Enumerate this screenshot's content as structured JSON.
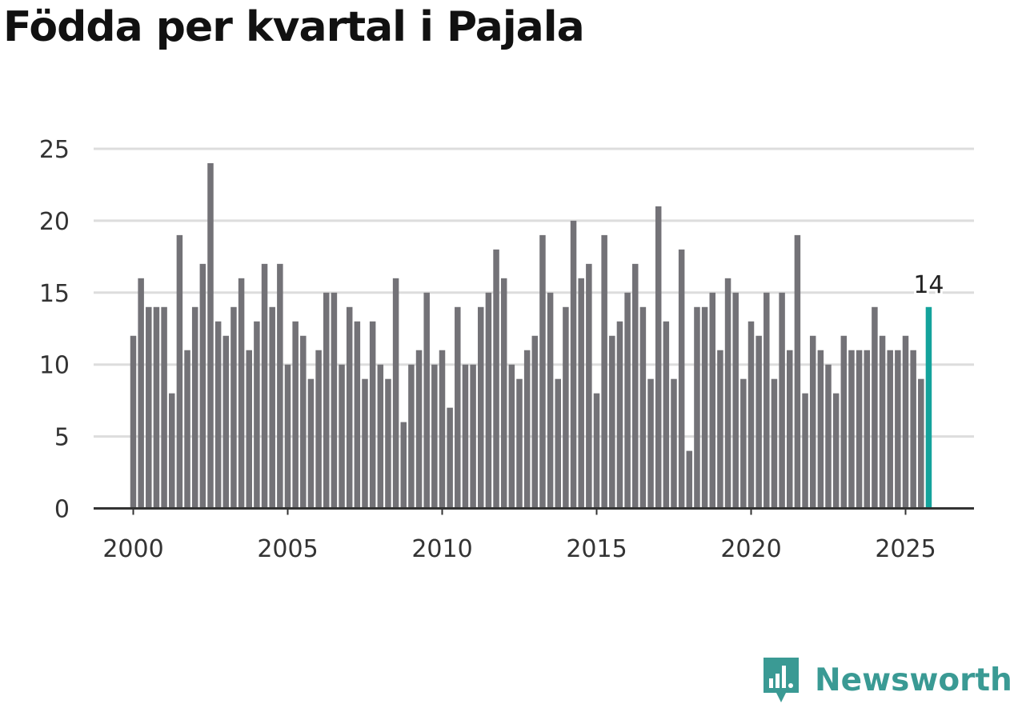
{
  "title": "Födda per kvartal i Pajala",
  "brand": {
    "name": "Newsworthy",
    "icon": "newsworthy-logo-icon",
    "color": "#3a9a94"
  },
  "colors": {
    "bar": "#737277",
    "highlight": "#14a39c",
    "grid": "#dddddd",
    "axis": "#333333"
  },
  "chart_data": {
    "type": "bar",
    "title": "Födda per kvartal i Pajala",
    "xlabel": "",
    "ylabel": "",
    "x_start": "2000 Q1",
    "x_ticks": [
      "2000",
      "2005",
      "2010",
      "2015",
      "2020",
      "2025"
    ],
    "y_ticks": [
      0,
      5,
      10,
      15,
      20,
      25
    ],
    "ylim": [
      0,
      25
    ],
    "grid": true,
    "values": [
      12,
      16,
      14,
      14,
      14,
      8,
      19,
      11,
      14,
      17,
      24,
      13,
      12,
      14,
      16,
      11,
      13,
      17,
      14,
      17,
      10,
      13,
      12,
      9,
      11,
      15,
      15,
      10,
      14,
      13,
      9,
      13,
      10,
      9,
      16,
      6,
      10,
      11,
      15,
      10,
      11,
      7,
      14,
      10,
      10,
      14,
      15,
      18,
      16,
      10,
      9,
      11,
      12,
      19,
      15,
      9,
      14,
      20,
      16,
      17,
      8,
      19,
      12,
      13,
      15,
      17,
      14,
      9,
      21,
      13,
      9,
      18,
      4,
      14,
      14,
      15,
      11,
      16,
      15,
      9,
      13,
      12,
      15,
      9,
      15,
      11,
      19,
      8,
      12,
      11,
      10,
      8,
      12,
      11,
      11,
      11,
      14,
      12,
      11,
      11,
      12,
      11,
      9,
      14
    ],
    "highlight": {
      "label": "14",
      "value": 14
    }
  }
}
